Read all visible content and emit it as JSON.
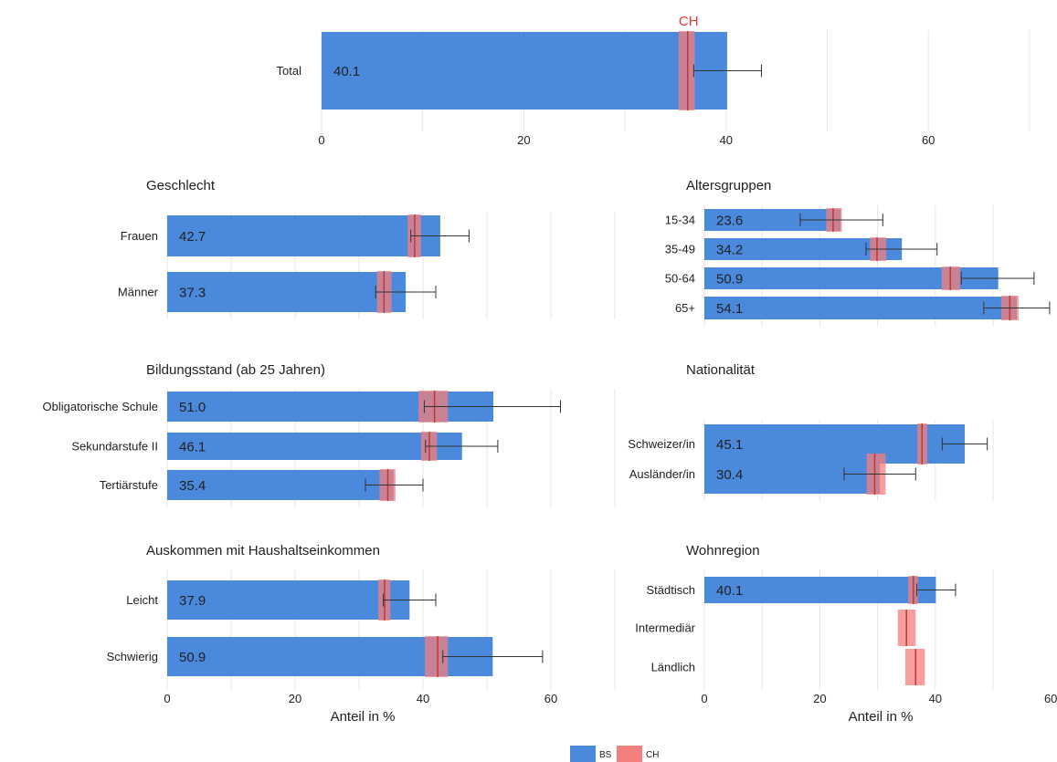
{
  "colors": {
    "bs": "#4a89dc",
    "ch": "#f47f7f",
    "ch_line": "#c0392b",
    "grid": "#e6e6e6",
    "ch_label": "#e53935"
  },
  "ch_marker_label": "CH",
  "axis_title": "Anteil in %",
  "legend": [
    {
      "key": "BS",
      "label": "BS"
    },
    {
      "key": "CH",
      "label": "CH"
    }
  ],
  "chart_data": [
    {
      "type": "bar",
      "title": "",
      "xlim": [
        0,
        70
      ],
      "ticks": [
        0,
        20,
        40,
        60
      ],
      "xlabel": "",
      "categories": [
        "Total"
      ],
      "series": [
        {
          "name": "BS",
          "values": [
            40.1
          ],
          "ci_low": [
            36.8
          ],
          "ci_high": [
            43.5
          ]
        },
        {
          "name": "CH",
          "values": [
            36.2
          ],
          "ci_low": [
            35.3
          ],
          "ci_high": [
            36.9
          ]
        }
      ]
    },
    {
      "type": "bar",
      "title": "Geschlecht",
      "xlim": [
        0,
        70
      ],
      "ticks": [],
      "xlabel": "",
      "categories": [
        "Frauen",
        "Männer"
      ],
      "series": [
        {
          "name": "BS",
          "values": [
            42.7,
            37.3
          ],
          "ci_low": [
            38.1,
            32.6
          ],
          "ci_high": [
            47.2,
            42.0
          ]
        },
        {
          "name": "CH",
          "values": [
            38.7,
            33.9
          ],
          "ci_low": [
            37.6,
            32.8
          ],
          "ci_high": [
            39.7,
            35.1
          ]
        }
      ]
    },
    {
      "type": "bar",
      "title": "Altersgruppen",
      "xlim": [
        0,
        60
      ],
      "ticks": [],
      "xlabel": "",
      "categories": [
        "15-34",
        "35-49",
        "50-64",
        "65+"
      ],
      "series": [
        {
          "name": "BS",
          "values": [
            23.6,
            34.2,
            50.9,
            54.1
          ],
          "ci_low": [
            16.6,
            28.0,
            44.5,
            48.4
          ],
          "ci_high": [
            30.9,
            40.3,
            57.1,
            59.8
          ]
        },
        {
          "name": "CH",
          "values": [
            22.3,
            29.9,
            42.6,
            52.9
          ],
          "ci_low": [
            21.1,
            28.7,
            41.1,
            51.4
          ],
          "ci_high": [
            23.8,
            31.5,
            44.3,
            54.4
          ]
        }
      ]
    },
    {
      "type": "bar",
      "title": "Bildungsstand (ab 25 Jahren)",
      "xlim": [
        0,
        70
      ],
      "ticks": [],
      "xlabel": "",
      "categories": [
        "Obligatorische Schule",
        "Sekundarstufe II",
        "Tertiärstufe"
      ],
      "series": [
        {
          "name": "BS",
          "values": [
            51.0,
            46.1,
            35.4
          ],
          "ci_low": [
            40.2,
            40.4,
            31.0
          ],
          "ci_high": [
            61.5,
            51.7,
            40.0
          ]
        },
        {
          "name": "CH",
          "values": [
            41.8,
            41.0,
            34.5
          ],
          "ci_low": [
            39.3,
            39.7,
            33.2
          ],
          "ci_high": [
            43.9,
            42.2,
            35.7
          ]
        }
      ]
    },
    {
      "type": "bar",
      "title": "Nationalität",
      "xlim": [
        0,
        60
      ],
      "ticks": [],
      "xlabel": "",
      "categories": [
        "Schweizer/in",
        "Ausländer/in"
      ],
      "series": [
        {
          "name": "BS",
          "values": [
            45.1,
            30.4
          ],
          "ci_low": [
            41.2,
            24.2
          ],
          "ci_high": [
            49.0,
            36.6
          ]
        },
        {
          "name": "CH",
          "values": [
            37.7,
            29.5
          ],
          "ci_low": [
            36.9,
            28.1
          ],
          "ci_high": [
            38.6,
            31.4
          ]
        }
      ]
    },
    {
      "type": "bar",
      "title": "Auskommen mit Haushaltseinkommen",
      "xlim": [
        0,
        70
      ],
      "ticks": [
        0,
        20,
        40,
        60
      ],
      "xlabel": "Anteil in %",
      "categories": [
        "Leicht",
        "Schwierig"
      ],
      "series": [
        {
          "name": "BS",
          "values": [
            37.9,
            50.9
          ],
          "ci_low": [
            33.8,
            43.1
          ],
          "ci_high": [
            42.0,
            58.7
          ]
        },
        {
          "name": "CH",
          "values": [
            34.0,
            42.3
          ],
          "ci_low": [
            33.0,
            40.3
          ],
          "ci_high": [
            34.9,
            43.9
          ]
        }
      ]
    },
    {
      "type": "bar",
      "title": "Wohnregion",
      "xlim": [
        0,
        60
      ],
      "ticks": [
        0,
        20,
        40,
        60
      ],
      "xlabel": "Anteil in %",
      "categories": [
        "Städtisch",
        "Intermediär",
        "Ländlich"
      ],
      "series": [
        {
          "name": "BS",
          "values": [
            40.1,
            null,
            null
          ],
          "ci_low": [
            36.8,
            null,
            null
          ],
          "ci_high": [
            43.5,
            null,
            null
          ]
        },
        {
          "name": "CH",
          "values": [
            36.2,
            35.0,
            36.6
          ],
          "ci_low": [
            35.3,
            33.5,
            34.8
          ],
          "ci_high": [
            37.0,
            36.6,
            38.2
          ]
        }
      ]
    }
  ]
}
